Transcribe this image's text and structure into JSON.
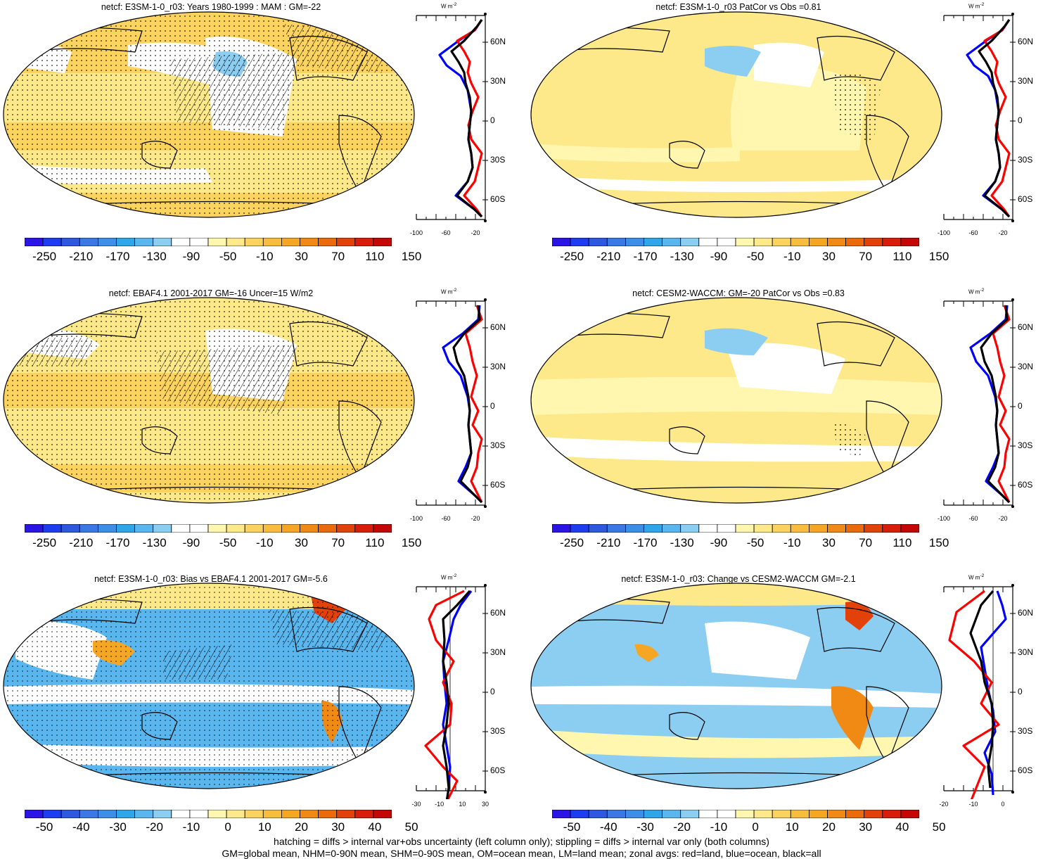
{
  "panels": [
    {
      "title": "netcf: E3SM-1-0_r03: Years 1980-1999 : MAM : GM=-22",
      "colorbar_labels": [
        "-250",
        "-210",
        "-170",
        "-130",
        "-90",
        "-50",
        "-10",
        "30",
        "70",
        "110",
        "150"
      ],
      "zonal_xticks": [
        "-100",
        "-60",
        "-20"
      ]
    },
    {
      "title": "netcf: E3SM-1-0_r03 PatCor vs Obs =0.81",
      "colorbar_labels": [
        "-250",
        "-210",
        "-170",
        "-130",
        "-90",
        "-50",
        "-10",
        "30",
        "70",
        "110",
        "150"
      ],
      "zonal_xticks": [
        "-100",
        "-60",
        "-20"
      ]
    },
    {
      "title": "netcf: EBAF4.1 2001-2017 GM=-16 Uncer=15 W/m2",
      "colorbar_labels": [
        "-250",
        "-210",
        "-170",
        "-130",
        "-90",
        "-50",
        "-10",
        "30",
        "70",
        "110",
        "150"
      ],
      "zonal_xticks": [
        "-100",
        "-60",
        "-20"
      ]
    },
    {
      "title": "netcf: CESM2-WACCM: GM=-20 PatCor vs Obs =0.83",
      "colorbar_labels": [
        "-250",
        "-210",
        "-170",
        "-130",
        "-90",
        "-50",
        "-10",
        "30",
        "70",
        "110",
        "150"
      ],
      "zonal_xticks": [
        "-100",
        "-60",
        "-20"
      ]
    },
    {
      "title": "netcf: E3SM-1-0_r03: Bias vs EBAF4.1 2001-2017 GM=-5.6",
      "colorbar_labels": [
        "-50",
        "-40",
        "-30",
        "-20",
        "-10",
        "0",
        "10",
        "20",
        "30",
        "40",
        "50"
      ],
      "zonal_xticks": [
        "-30",
        "-10",
        "10",
        "30"
      ]
    },
    {
      "title": "netcf: E3SM-1-0_r03: Change vs CESM2-WACCM GM=-2.1",
      "colorbar_labels": [
        "-50",
        "-40",
        "-30",
        "-20",
        "-10",
        "0",
        "10",
        "20",
        "30",
        "40",
        "50"
      ],
      "zonal_xticks": [
        "-20",
        "-10",
        "0"
      ]
    }
  ],
  "lat_labels": [
    "60N",
    "30N",
    "0",
    "30S",
    "60S"
  ],
  "units_label": "W m",
  "units_exponent": "-2",
  "colors": {
    "colorbar": [
      "#2a14e6",
      "#1e3cf0",
      "#2f58e0",
      "#3a78e6",
      "#3c8ee8",
      "#2fa6ea",
      "#5ab6ee",
      "#8ccdf2",
      "#ffffff",
      "#ffffff",
      "#fff7b0",
      "#fde98a",
      "#fbd35e",
      "#f8bd3c",
      "#f5a623",
      "#f08a14",
      "#ea6a0c",
      "#e2420a",
      "#d81e0a",
      "#c40606"
    ],
    "land_blue": "#0000ff",
    "land_red": "#ff0000",
    "all_black": "#000000"
  },
  "footer": {
    "line1": "hatching = diffs > internal var+obs uncertainty (left column only); stippling = diffs > internal var only (both columns)",
    "line2": "GM=global mean, NHM=0-90N mean, SHM=0-90S mean, OM=ocean mean, LM=land mean; zonal avgs: red=land, blue=ocean, black=all"
  }
}
